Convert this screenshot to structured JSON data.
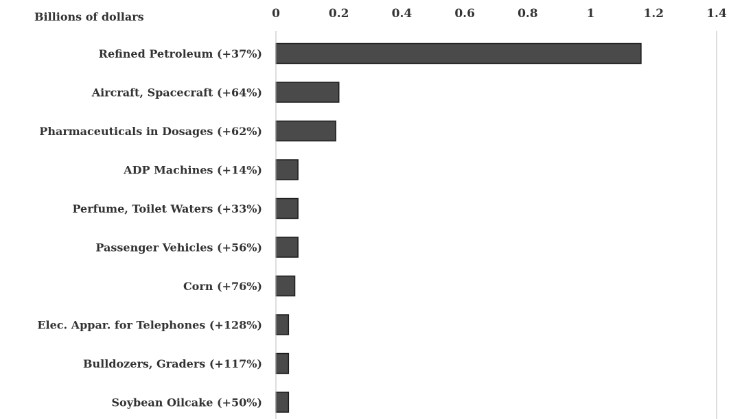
{
  "chart_data": {
    "type": "bar",
    "orientation": "horizontal",
    "unit_label": "Billions of dollars",
    "categories": [
      "Refined Petroleum (+37%)",
      "Aircraft, Spacecraft (+64%)",
      "Pharmaceuticals in Dosages (+62%)",
      "ADP Machines (+14%)",
      "Perfume, Toilet Waters (+33%)",
      "Passenger Vehicles (+56%)",
      "Corn (+76%)",
      "Elec. Appar. for Telephones (+128%)",
      "Bulldozers, Graders (+117%)",
      "Soybean Oilcake (+50%)"
    ],
    "values": [
      1.16,
      0.2,
      0.19,
      0.07,
      0.07,
      0.07,
      0.06,
      0.04,
      0.04,
      0.04
    ],
    "xlim": [
      0,
      1.4
    ],
    "xticks": [
      0,
      0.2,
      0.4,
      0.6,
      0.8,
      1,
      1.2,
      1.4
    ],
    "xtick_labels": [
      "0",
      "0.2",
      "0.4",
      "0.6",
      "0.8",
      "1",
      "1.2",
      "1.4"
    ],
    "x_axis_position": "top",
    "grid": false,
    "bar_color": "#4a4a4a",
    "bar_edge_color": "#1a1a1a"
  }
}
